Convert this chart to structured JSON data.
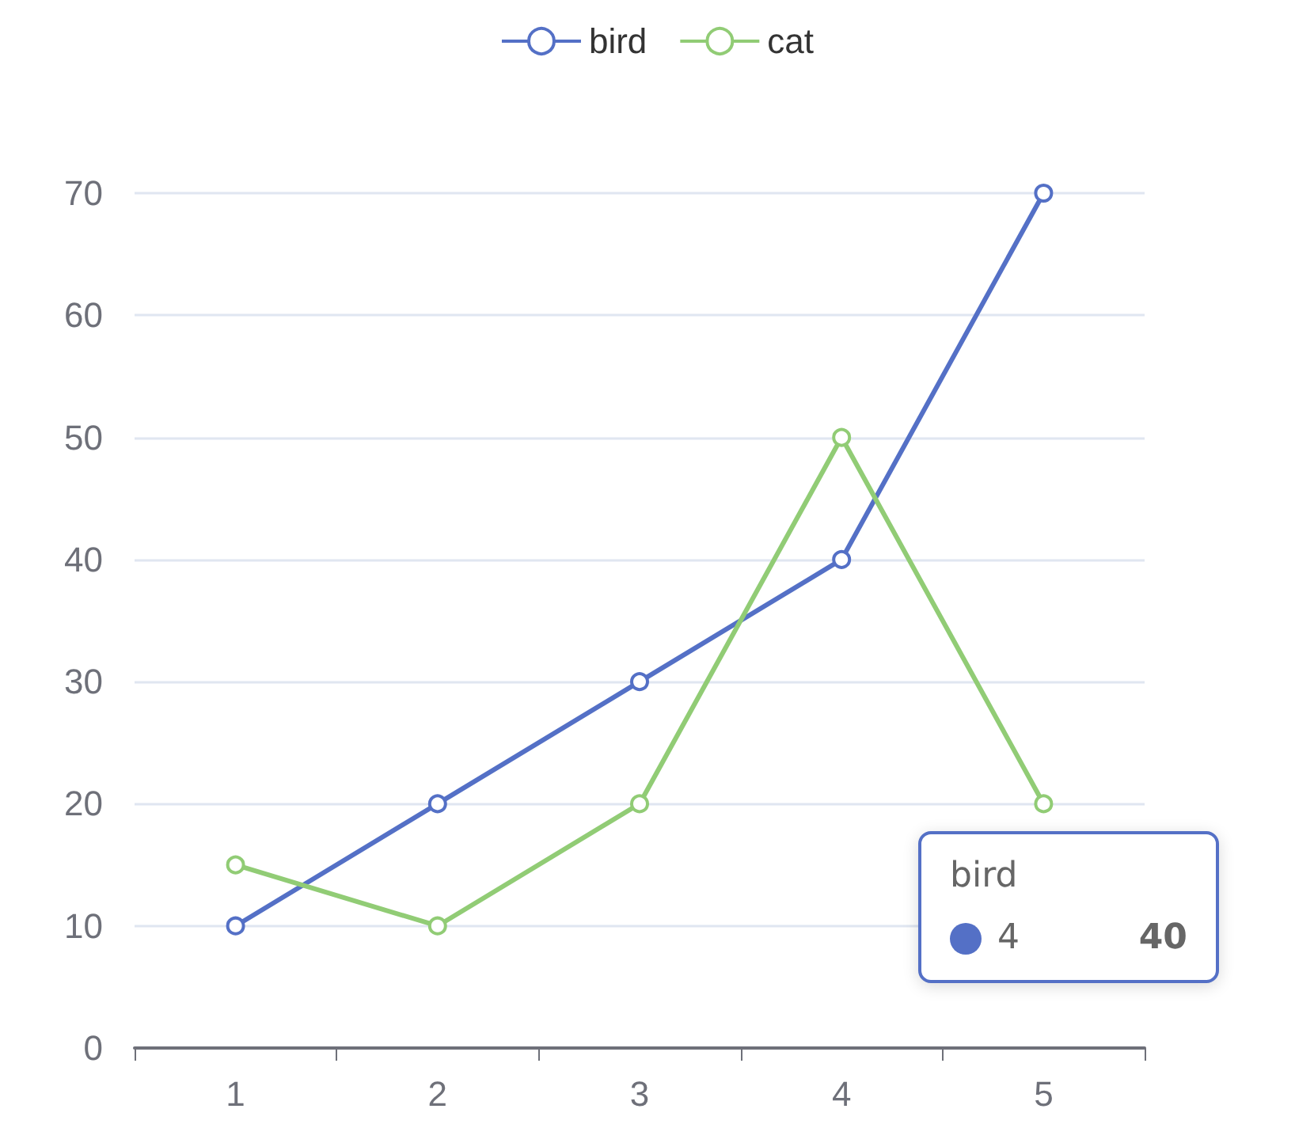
{
  "chart_data": {
    "type": "line",
    "categories": [
      "1",
      "2",
      "3",
      "4",
      "5"
    ],
    "series": [
      {
        "name": "bird",
        "color": "#5470c6",
        "values": [
          10,
          20,
          30,
          40,
          70
        ]
      },
      {
        "name": "cat",
        "color": "#91cc75",
        "values": [
          15,
          10,
          20,
          50,
          20
        ]
      }
    ],
    "ylim": [
      0,
      70
    ],
    "yticks": [
      0,
      10,
      20,
      30,
      40,
      50,
      60,
      70
    ],
    "grid": "y",
    "legend": "top",
    "marker": "circle",
    "line_style": "solid",
    "annotations": [
      "bird",
      "4",
      "40"
    ]
  }
}
